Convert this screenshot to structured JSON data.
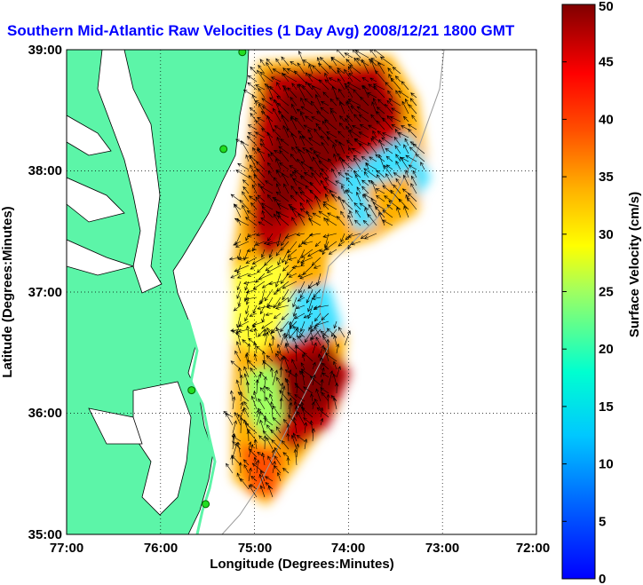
{
  "title": "Southern Mid-Atlantic Raw Velocities (1 Day Avg) 2008/12/21 1800 GMT",
  "x_axis": {
    "label": "Longitude (Degrees:Minutes)",
    "ticks": [
      "77:00",
      "76:00",
      "75:00",
      "74:00",
      "73:00",
      "72:00"
    ]
  },
  "y_axis": {
    "label": "Latitude (Degrees:Minutes)",
    "ticks": [
      "39:00",
      "38:00",
      "37:00",
      "36:00",
      "35:00"
    ]
  },
  "colorbar": {
    "label": "Surface Velocity (cm/s)",
    "ticks": [
      "0",
      "5",
      "10",
      "15",
      "20",
      "25",
      "30",
      "35",
      "40",
      "45",
      "50"
    ],
    "range": [
      0,
      50
    ],
    "colormap": "jet"
  },
  "colors": {
    "land": "#5cf5a8",
    "ocean": "#ffffff",
    "title": "#0000ff",
    "station": "#22dd22"
  },
  "map_extent": {
    "lon": [
      -77,
      -72
    ],
    "lat": [
      35,
      39
    ]
  },
  "grid": "dotted",
  "stations": [
    {
      "lon": -75.13,
      "lat": 38.98
    },
    {
      "lon": -75.33,
      "lat": 38.18
    },
    {
      "lon": -75.67,
      "lat": 36.19
    },
    {
      "lon": -75.52,
      "lat": 35.25
    }
  ]
}
